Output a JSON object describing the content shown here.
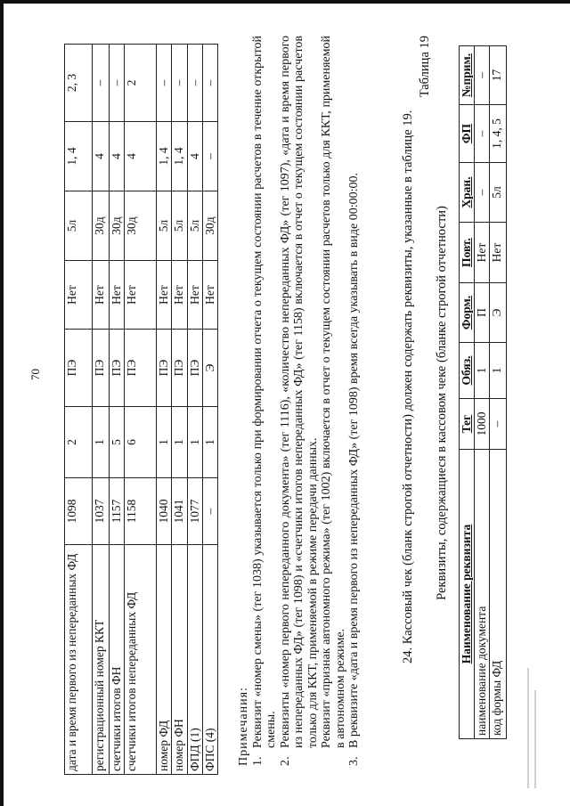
{
  "page_number": "70",
  "table1": {
    "rows": [
      [
        "дата и время первого из непереданных ФД",
        "1098",
        "2",
        "ПЭ",
        "Нет",
        "5л",
        "1, 4",
        "2, 3"
      ],
      [
        "регистрационный номер ККТ",
        "1037",
        "1",
        "ПЭ",
        "Нет",
        "30д",
        "4",
        "–"
      ],
      [
        "счетчики итогов ФН",
        "1157",
        "5",
        "ПЭ",
        "Нет",
        "30д",
        "4",
        "–"
      ],
      [
        "счетчики итогов непереданных ФД",
        "1158",
        "6",
        "ПЭ",
        "Нет",
        "30д",
        "4",
        "2"
      ],
      [
        "номер ФД",
        "1040",
        "1",
        "ПЭ",
        "Нет",
        "5л",
        "1, 4",
        "–"
      ],
      [
        "номер ФН",
        "1041",
        "1",
        "ПЭ",
        "Нет",
        "5л",
        "1, 4",
        "–"
      ],
      [
        "ФПД (1)",
        "1077",
        "1",
        "ПЭ",
        "Нет",
        "5л",
        "4",
        "–"
      ],
      [
        "ФПС (4)",
        "–",
        "1",
        "Э",
        "Нет",
        "30д",
        "–",
        "–"
      ]
    ]
  },
  "notes": {
    "title": "Примечания:",
    "items": [
      {
        "num": "1.",
        "text": "Реквизит «номер смены» (тег 1038) указывается только при формировании отчета о текущем состоянии расчетов в течение открытой смены."
      },
      {
        "num": "2.",
        "text": "Реквизиты «номер первого непереданного документа» (тег 1116), «количество непереданных ФД» (тег 1097), «дата и время первого из непереданных ФД» (тег 1098) и «счетчики итогов непереданных ФД» (тег 1158) включается в отчет о текущем состоянии расчетов только для ККТ, применяемой в режиме передачи данных."
      },
      {
        "num": "",
        "text": "Реквизит «признак автономного режима» (тег 1002) включается в отчет о текущем состоянии расчетов только для ККТ, применяемой в автономном режиме."
      },
      {
        "num": "3.",
        "text": "В реквизите «дата и время первого из непереданных ФД» (тег 1098) время всегда указывать в виде 00:00:00."
      }
    ]
  },
  "section_heading": "24. Кассовый чек (бланк строгой отчетности) должен содержать реквизиты, указанные в таблице 19.",
  "table2": {
    "number": "Таблица 19",
    "caption": "Реквизиты, содержащиеся в кассовом чеке (бланке строгой отчетности)",
    "headers": [
      "Наименование реквизита",
      "Тег",
      "Обяз.",
      "Форм.",
      "Повт.",
      "Хран.",
      "ФП",
      "№прим."
    ],
    "rows": [
      [
        "наименование документа",
        "1000",
        "1",
        "П",
        "Нет",
        "–",
        "–",
        "–"
      ],
      [
        "код формы ФД",
        "–",
        "1",
        "Э",
        "Нет",
        "5л",
        "1, 4, 5",
        "17"
      ]
    ]
  }
}
